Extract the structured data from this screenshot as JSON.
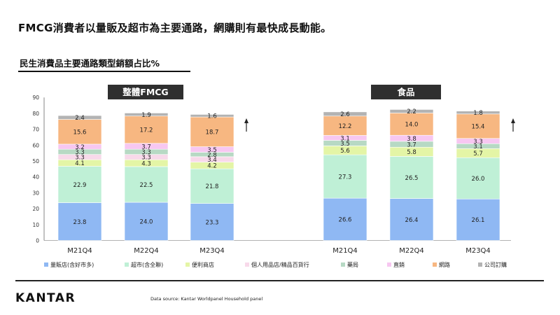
{
  "headline": "FMCG消費者以量販及超市為主要通路，網購則有最快成長動能。",
  "subtitle": "民生消費品主要通路類型銷額占比%",
  "logo": "KANTAR",
  "source": "Data source: Kantar Worldpanel Household panel",
  "chart_data": {
    "type": "bar",
    "stacked": true,
    "ylim": [
      0,
      90
    ],
    "yticks": [
      0,
      10,
      20,
      30,
      40,
      50,
      60,
      70,
      80,
      90
    ],
    "grid": false,
    "legend_position": "bottom",
    "panels": [
      {
        "title": "整體FMCG",
        "categories": [
          "M21Q4",
          "M22Q4",
          "M23Q4"
        ],
        "arrow": "up"
      },
      {
        "title": "食品",
        "categories": [
          "M21Q4",
          "M22Q4",
          "M23Q4"
        ],
        "arrow": "up"
      }
    ],
    "series": [
      {
        "name": "量販店(含好市多)",
        "color": "#8fb8f3",
        "values": {
          "整體FMCG": [
            23.8,
            24.0,
            23.3
          ],
          "食品": [
            26.6,
            26.4,
            26.1
          ]
        }
      },
      {
        "name": "超市(含全聯)",
        "color": "#bff0d6",
        "values": {
          "整體FMCG": [
            22.9,
            22.5,
            21.8
          ],
          "食品": [
            27.3,
            26.5,
            26.0
          ]
        }
      },
      {
        "name": "便利商店",
        "color": "#e4f5a6",
        "values": {
          "整體FMCG": [
            4.1,
            4.3,
            4.2
          ],
          "食品": [
            5.6,
            5.8,
            5.7
          ]
        }
      },
      {
        "name": "個人用品店/精品百貨行",
        "color": "#f8d9ea",
        "values": {
          "整體FMCG": [
            3.3,
            3.3,
            3.4
          ],
          "食品": [
            null,
            null,
            null
          ]
        }
      },
      {
        "name": "藥局",
        "color": "#b7d9c4",
        "values": {
          "整體FMCG": [
            3.3,
            3.3,
            2.8
          ],
          "食品": [
            3.5,
            3.7,
            3.1
          ]
        }
      },
      {
        "name": "直銷",
        "color": "#f7c7f1",
        "values": {
          "整體FMCG": [
            3.2,
            3.7,
            3.5
          ],
          "食品": [
            3.1,
            3.8,
            3.3
          ]
        }
      },
      {
        "name": "網路",
        "color": "#f7b781",
        "values": {
          "整體FMCG": [
            15.6,
            17.2,
            18.7
          ],
          "食品": [
            12.2,
            14.0,
            15.4
          ]
        }
      },
      {
        "name": "公司訂購",
        "color": "#b3b3b3",
        "values": {
          "整體FMCG": [
            2.4,
            1.9,
            1.6
          ],
          "食品": [
            2.6,
            2.2,
            1.8
          ]
        }
      }
    ]
  }
}
